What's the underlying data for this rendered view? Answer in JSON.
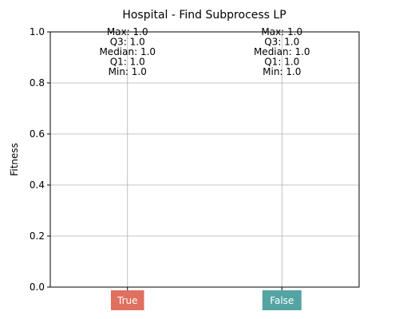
{
  "chart_data": {
    "type": "box",
    "title": "Hospital - Find Subprocess LP",
    "xlabel": "",
    "ylabel": "Fitness",
    "ylim": [
      0.0,
      1.0
    ],
    "yticks": [
      0.0,
      0.2,
      0.4,
      0.6,
      0.8,
      1.0
    ],
    "ytick_labels": [
      "0.0",
      "0.2",
      "0.4",
      "0.6",
      "0.8",
      "1.0"
    ],
    "grid": true,
    "categories": [
      "True",
      "False"
    ],
    "category_colors": [
      "#e07060",
      "#55a4a4"
    ],
    "boxes": [
      {
        "category": "True",
        "max": 1.0,
        "q3": 1.0,
        "median": 1.0,
        "q1": 1.0,
        "min": 1.0,
        "stat_labels": [
          "Max: 1.0",
          "Q3: 1.0",
          "Median: 1.0",
          "Q1: 1.0",
          "Min: 1.0"
        ]
      },
      {
        "category": "False",
        "max": 1.0,
        "q3": 1.0,
        "median": 1.0,
        "q1": 1.0,
        "min": 1.0,
        "stat_labels": [
          "Max: 1.0",
          "Q3: 1.0",
          "Median: 1.0",
          "Q1: 1.0",
          "Min: 1.0"
        ]
      }
    ]
  }
}
